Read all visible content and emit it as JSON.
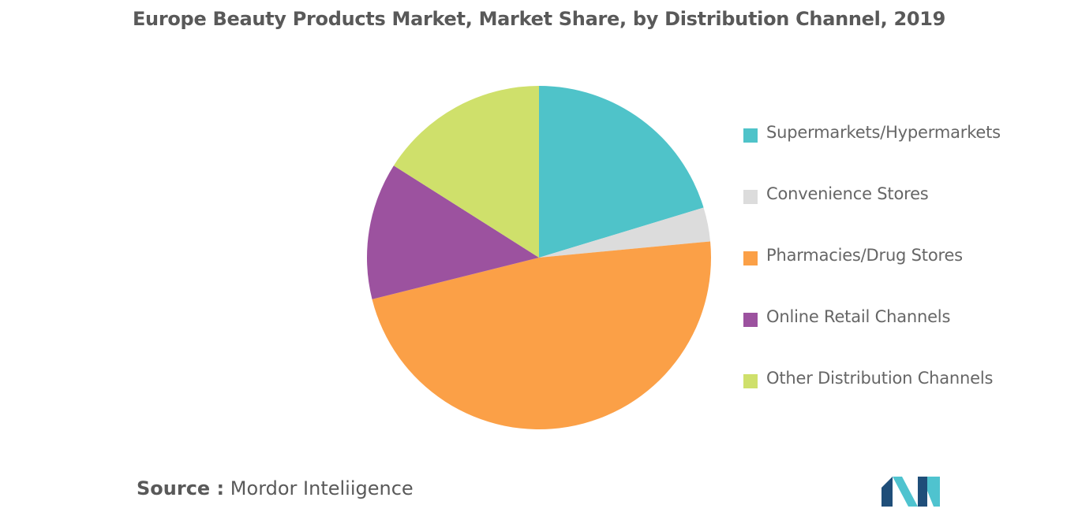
{
  "title": "Europe Beauty Products Market, Market Share, by Distribution Channel, 2019",
  "source": {
    "label": "Source :",
    "value": "Mordor Inteliigence"
  },
  "colors": {
    "title": "#595959",
    "legend_text": "#666666",
    "logo_dark": "#1f4e79",
    "logo_light": "#4fc3cf"
  },
  "logo": {
    "icon": "mordor-intelligence-logo"
  },
  "chart_data": {
    "type": "pie",
    "title": "Europe Beauty Products Market, Market Share, by Distribution Channel, 2019",
    "legend_position": "right",
    "series": [
      {
        "name": "Supermarkets/Hypermarkets",
        "value": 20.3,
        "color": "#4fc3c9"
      },
      {
        "name": "Convenience Stores",
        "value": 3.2,
        "color": "#dcdcdc"
      },
      {
        "name": "Pharmacies/Drug Stores",
        "value": 47.6,
        "color": "#fba047"
      },
      {
        "name": "Online Retail Channels",
        "value": 12.9,
        "color": "#9c529f"
      },
      {
        "name": "Other Distribution Channels",
        "value": 16.0,
        "color": "#cfe06b"
      }
    ]
  }
}
